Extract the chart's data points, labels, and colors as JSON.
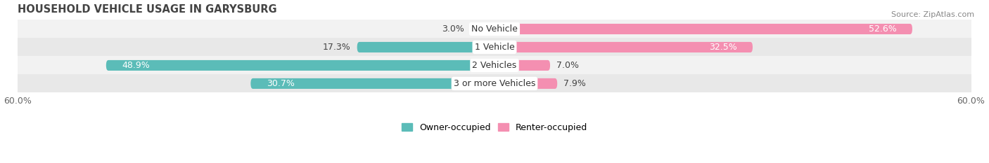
{
  "title": "HOUSEHOLD VEHICLE USAGE IN GARYSBURG",
  "source": "Source: ZipAtlas.com",
  "categories": [
    "No Vehicle",
    "1 Vehicle",
    "2 Vehicles",
    "3 or more Vehicles"
  ],
  "owner_values": [
    3.0,
    17.3,
    48.9,
    30.7
  ],
  "renter_values": [
    52.6,
    32.5,
    7.0,
    7.9
  ],
  "owner_color": "#5bbcb8",
  "renter_color": "#f48fb1",
  "row_bg_colors": [
    "#f2f2f2",
    "#e8e8e8"
  ],
  "xlim": [
    -60,
    60
  ],
  "xtick_labels": [
    "60.0%",
    "60.0%"
  ],
  "legend_owner": "Owner-occupied",
  "legend_renter": "Renter-occupied",
  "title_fontsize": 10.5,
  "source_fontsize": 8,
  "label_fontsize": 9,
  "bar_height": 0.58
}
